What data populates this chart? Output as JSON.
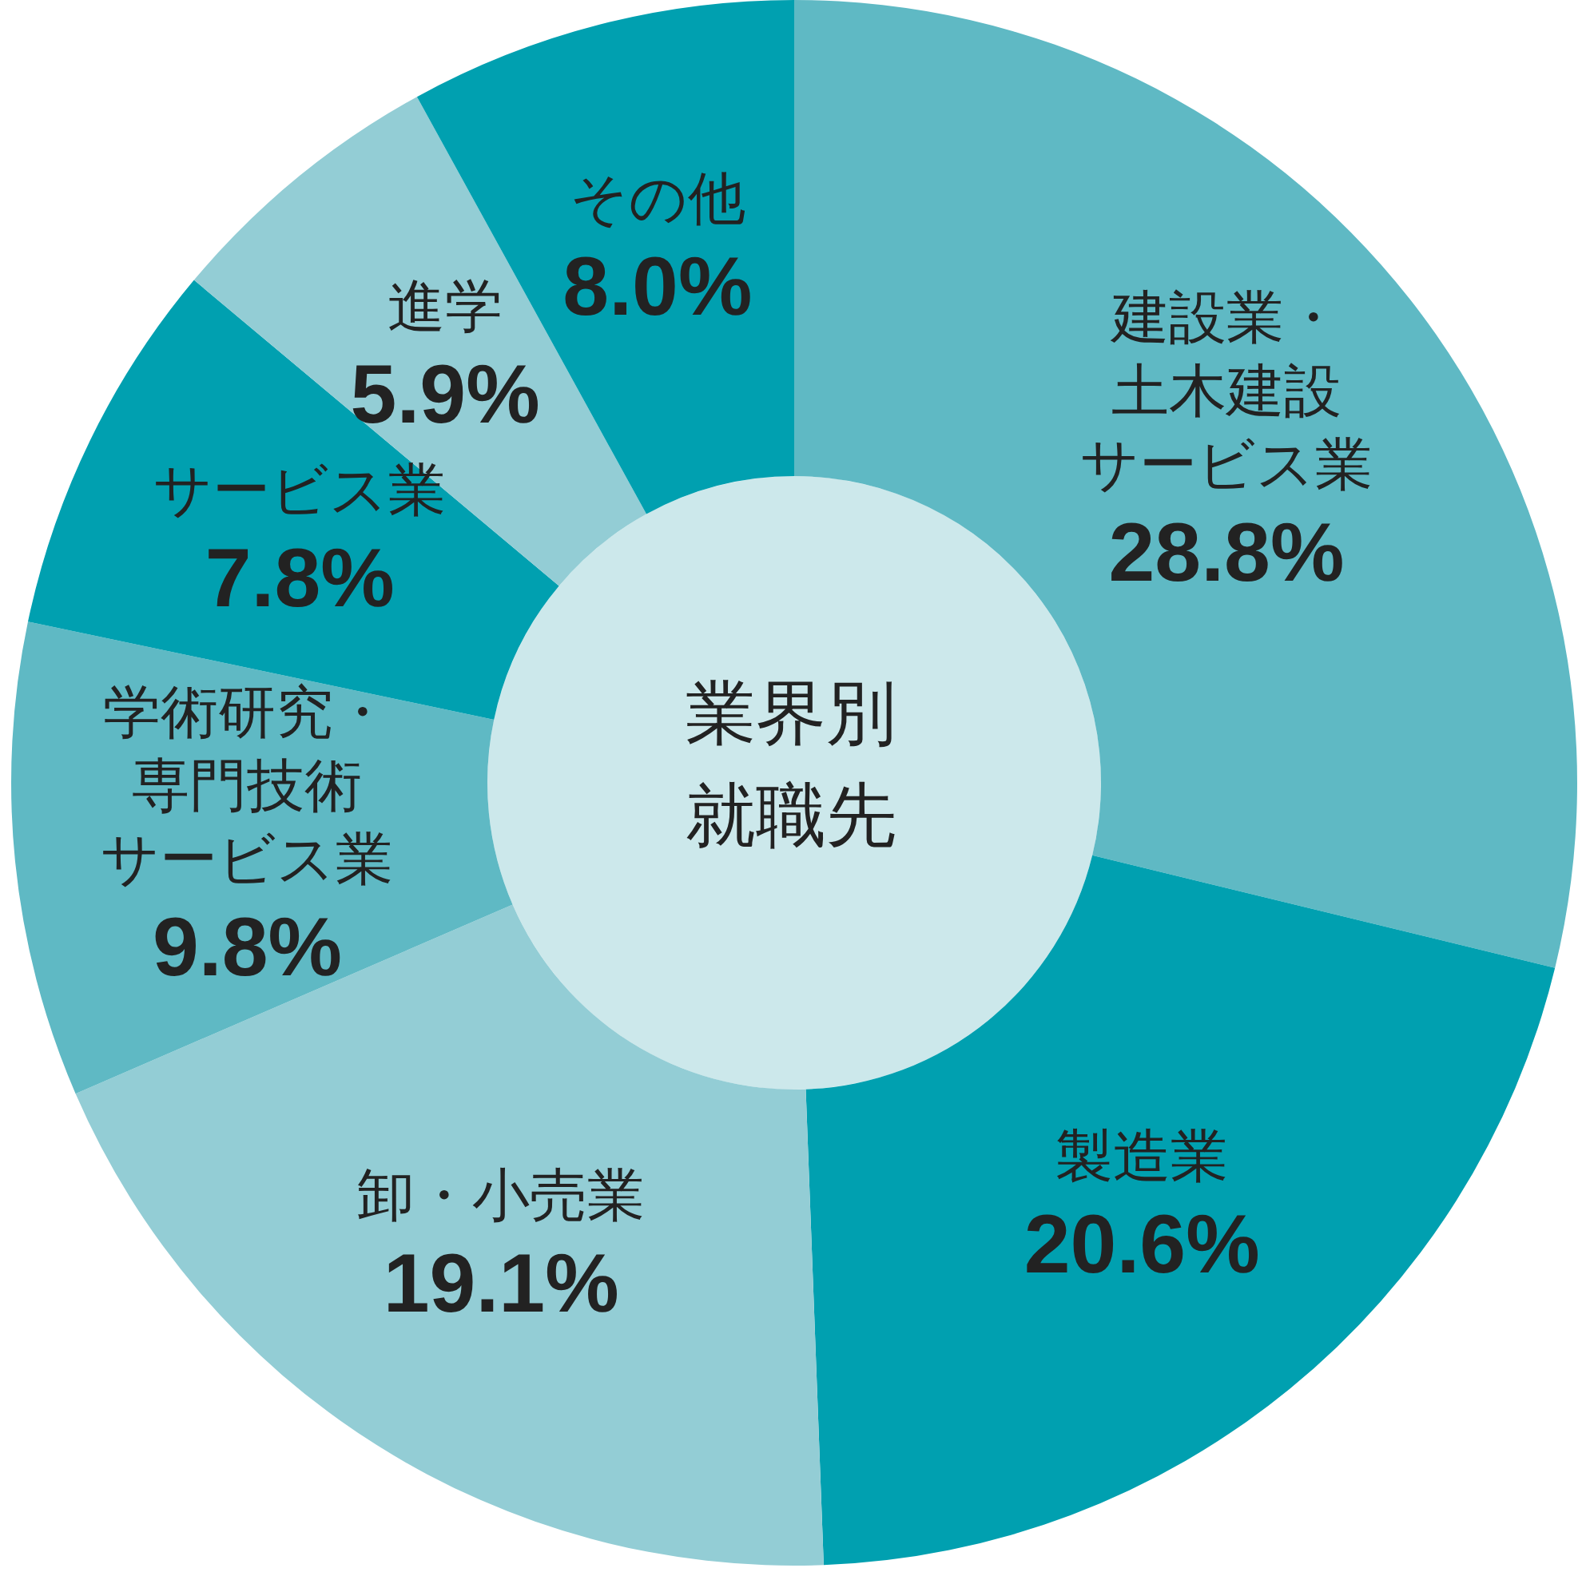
{
  "chart_data": {
    "type": "donut",
    "title": "業界別就職先",
    "categories": [
      "建設業・土木建設サービス業",
      "製造業",
      "卸・小売業",
      "学術研究・専門技術サービス業",
      "サービス業",
      "進学",
      "その他"
    ],
    "values": [
      28.8,
      20.6,
      19.1,
      9.8,
      7.8,
      5.9,
      8.0
    ],
    "value_labels": [
      "28.8%",
      "20.6%",
      "19.1%",
      "9.8%",
      "7.8%",
      "5.9%",
      "8.0%"
    ],
    "colors": [
      "#5fb9c4",
      "#00a0b0",
      "#93cdd5",
      "#5fb9c4",
      "#00a0b0",
      "#93cdd5",
      "#00a0b0"
    ],
    "legend": false
  }
}
